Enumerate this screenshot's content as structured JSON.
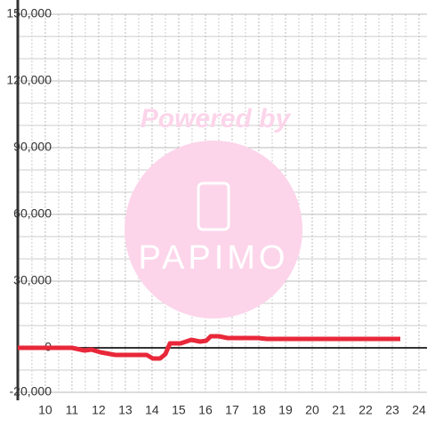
{
  "chart_data": {
    "type": "line",
    "watermark": {
      "title": "Powered by",
      "brand": "PAPIMO"
    },
    "x": [
      8.97,
      11.0,
      11.47,
      11.73,
      12.07,
      12.63,
      13.8,
      14.03,
      14.3,
      14.5,
      14.67,
      15.07,
      15.47,
      15.8,
      16.03,
      16.2,
      16.5,
      16.83,
      17.97,
      18.3,
      23.3
    ],
    "series": [
      {
        "color": "#e8283a",
        "values": [
          0,
          0,
          -1200,
          -800,
          -2000,
          -3200,
          -3200,
          -4800,
          -4800,
          -2800,
          2000,
          2000,
          3600,
          2800,
          3200,
          5200,
          5200,
          4400,
          4400,
          4000,
          4000
        ]
      }
    ],
    "xlim": [
      8.97,
      24.3
    ],
    "xticks": [
      10,
      11,
      12,
      13,
      14,
      15,
      16,
      17,
      18,
      19,
      20,
      21,
      22,
      23,
      24
    ],
    "x_minor_ticks": [
      9.5,
      10.5,
      11.5,
      12.5,
      13.5,
      14.5,
      15.5,
      16.5,
      17.5,
      18.5,
      19.5,
      20.5,
      21.5,
      22.5,
      23.5
    ],
    "ylim": [
      -20000,
      150000
    ],
    "yticks": [
      {
        "value": -20000,
        "label": "-20,000"
      },
      0,
      {
        "value": 30000,
        "label": "30,000"
      },
      {
        "value": 60000,
        "label": "60,000"
      },
      {
        "value": 90000,
        "label": "90,000"
      },
      {
        "value": 120000,
        "label": "120,000"
      },
      {
        "value": 150000,
        "label": "150,000"
      }
    ],
    "y_minor_ticks": [
      -10000,
      10000,
      20000,
      40000,
      50000,
      70000,
      80000,
      100000,
      110000,
      130000,
      140000
    ],
    "grid": true
  }
}
